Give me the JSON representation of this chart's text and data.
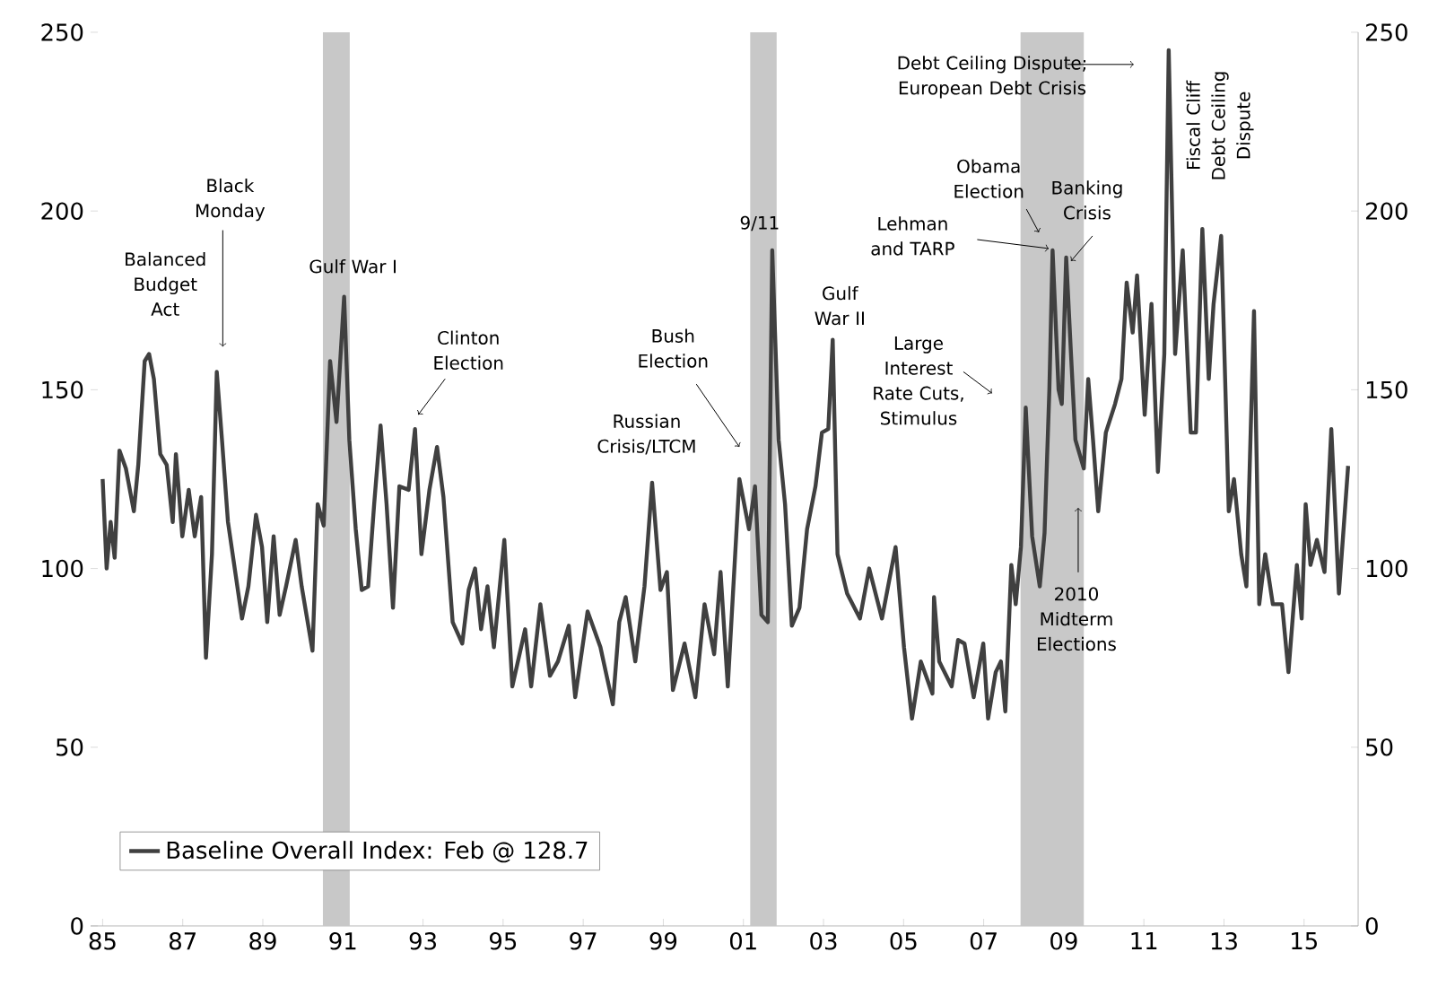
{
  "chart_data": {
    "type": "line",
    "x": [
      1985.0,
      1985.1,
      1985.2,
      1985.3,
      1985.42,
      1985.58,
      1985.78,
      1985.89,
      1986.05,
      1986.16,
      1986.28,
      1986.44,
      1986.6,
      1986.75,
      1986.83,
      1986.99,
      1987.15,
      1987.3,
      1987.46,
      1987.58,
      1987.73,
      1987.85,
      1987.98,
      1988.13,
      1988.48,
      1988.64,
      1988.83,
      1988.98,
      1989.11,
      1989.27,
      1989.42,
      1989.58,
      1989.82,
      1989.97,
      1990.24,
      1990.37,
      1990.52,
      1990.68,
      1990.84,
      1991.03,
      1991.16,
      1991.32,
      1991.47,
      1991.63,
      1991.78,
      1991.94,
      1992.09,
      1992.25,
      1992.41,
      1992.64,
      1992.8,
      1992.96,
      1993.16,
      1993.35,
      1993.51,
      1993.74,
      1993.98,
      1994.14,
      1994.3,
      1994.45,
      1994.61,
      1994.77,
      1995.03,
      1995.23,
      1995.55,
      1995.7,
      1995.93,
      1996.17,
      1996.37,
      1996.64,
      1996.8,
      1997.11,
      1997.43,
      1997.74,
      1997.9,
      1998.06,
      1998.3,
      1998.53,
      1998.72,
      1998.93,
      1999.09,
      1999.24,
      1999.53,
      1999.8,
      2000.03,
      2000.27,
      2000.43,
      2000.61,
      2000.9,
      2001.14,
      2001.29,
      2001.45,
      2001.61,
      2001.72,
      2001.88,
      2002.04,
      2002.21,
      2002.4,
      2002.59,
      2002.8,
      2002.96,
      2003.12,
      2003.23,
      2003.35,
      2003.59,
      2003.91,
      2004.14,
      2004.46,
      2004.8,
      2005.01,
      2005.21,
      2005.43,
      2005.72,
      2005.76,
      2005.89,
      2006.2,
      2006.36,
      2006.52,
      2006.75,
      2006.99,
      2007.11,
      2007.3,
      2007.43,
      2007.54,
      2007.69,
      2007.8,
      2007.93,
      2008.05,
      2008.21,
      2008.4,
      2008.52,
      2008.64,
      2008.72,
      2008.87,
      2008.95,
      2009.06,
      2009.18,
      2009.29,
      2009.5,
      2009.61,
      2009.73,
      2009.86,
      2010.05,
      2010.28,
      2010.44,
      2010.57,
      2010.72,
      2010.83,
      2011.02,
      2011.19,
      2011.35,
      2011.51,
      2011.62,
      2011.78,
      2011.97,
      2012.17,
      2012.3,
      2012.46,
      2012.62,
      2012.74,
      2012.93,
      2013.12,
      2013.25,
      2013.43,
      2013.56,
      2013.75,
      2013.88,
      2014.03,
      2014.22,
      2014.45,
      2014.61,
      2014.82,
      2014.94,
      2015.04,
      2015.16,
      2015.32,
      2015.51,
      2015.68,
      2015.87,
      2016.1
    ],
    "series": [
      {
        "name": "Baseline Overall Index: Feb @ 128.7",
        "color": "#404040",
        "values": [
          125,
          100,
          113,
          103,
          133,
          128,
          116,
          129,
          158,
          160,
          153,
          132,
          129,
          113,
          132,
          109,
          122,
          109,
          120,
          75,
          104,
          155,
          136,
          113,
          86,
          95,
          115,
          106,
          85,
          109,
          87,
          95,
          108,
          95,
          77,
          118,
          112,
          158,
          141,
          176,
          136,
          111,
          94,
          95,
          118,
          140,
          118,
          89,
          123,
          122,
          139,
          104,
          122,
          134,
          120,
          85,
          79,
          94,
          100,
          83,
          95,
          78,
          108,
          67,
          83,
          67,
          90,
          70,
          74,
          84,
          64,
          88,
          78,
          62,
          85,
          92,
          74,
          95,
          124,
          94,
          99,
          66,
          79,
          64,
          90,
          76,
          99,
          67,
          125,
          111,
          123,
          87,
          85,
          189,
          136,
          118,
          84,
          89,
          111,
          123,
          138,
          139,
          164,
          104,
          93,
          86,
          100,
          86,
          106,
          78,
          58,
          74,
          65,
          92,
          74,
          67,
          80,
          79,
          64,
          79,
          58,
          71,
          74,
          60,
          101,
          90,
          106,
          145,
          109,
          95,
          110,
          150,
          189,
          150,
          146,
          187,
          160,
          136,
          128,
          153,
          136,
          116,
          138,
          146,
          153,
          180,
          166,
          182,
          143,
          174,
          127,
          160,
          245,
          160,
          189,
          138,
          138,
          195,
          153,
          174,
          193,
          116,
          125,
          104,
          95,
          172,
          90,
          104,
          90,
          90,
          71,
          101,
          86,
          118,
          101,
          108,
          99,
          139,
          93,
          128.7
        ]
      }
    ],
    "xlim": [
      1984.7,
      2016.35
    ],
    "xticks": [
      {
        "value": 1985,
        "label": "85"
      },
      {
        "value": 1987,
        "label": "87"
      },
      {
        "value": 1989,
        "label": "89"
      },
      {
        "value": 1991,
        "label": "91"
      },
      {
        "value": 1993,
        "label": "93"
      },
      {
        "value": 1995,
        "label": "95"
      },
      {
        "value": 1997,
        "label": "97"
      },
      {
        "value": 1999,
        "label": "99"
      },
      {
        "value": 2001,
        "label": "01"
      },
      {
        "value": 2003,
        "label": "03"
      },
      {
        "value": 2005,
        "label": "05"
      },
      {
        "value": 2007,
        "label": "07"
      },
      {
        "value": 2009,
        "label": "09"
      },
      {
        "value": 2011,
        "label": "11"
      },
      {
        "value": 2013,
        "label": "13"
      },
      {
        "value": 2015,
        "label": "15"
      }
    ],
    "ylim": [
      0,
      250
    ],
    "yticks": [
      0,
      50,
      100,
      150,
      200,
      250
    ],
    "y2lim": [
      0,
      250
    ],
    "y2ticks": [
      0,
      50,
      100,
      150,
      200,
      250
    ],
    "bands": [
      {
        "axis": "x",
        "from": 1990.5,
        "to": 1991.17,
        "color": "#c8c8c8"
      },
      {
        "axis": "x",
        "from": 2001.17,
        "to": 2001.83,
        "color": "#c8c8c8"
      },
      {
        "axis": "x",
        "from": 2007.92,
        "to": 2009.5,
        "color": "#c8c8c8"
      }
    ],
    "legend": "bottom left",
    "annotations": [
      {
        "text": "Balanced Budget Act",
        "x": 1986.16,
        "y": 160
      },
      {
        "text": "Black Monday",
        "x": 1988.0,
        "y": 162
      },
      {
        "text": "Gulf War I",
        "x": 1991.03,
        "y": 176
      },
      {
        "text": "Clinton Election",
        "x": 1992.88,
        "y": 143
      },
      {
        "text": "Russian Crisis/LTCM",
        "x": 1998.72,
        "y": 124
      },
      {
        "text": "Bush Election",
        "x": 2000.9,
        "y": 134
      },
      {
        "text": "9/11",
        "x": 2001.72,
        "y": 189
      },
      {
        "text": "Gulf War II",
        "x": 2003.23,
        "y": 164
      },
      {
        "text": "Large Interest Rate Cuts, Stimulus",
        "x": 2007.21,
        "y": 149
      },
      {
        "text": "Lehman and TARP",
        "x": 2008.72,
        "y": 189
      },
      {
        "text": "Obama Election",
        "x": 2008.38,
        "y": 194
      },
      {
        "text": "Banking Crisis",
        "x": 2009.18,
        "y": 186
      },
      {
        "text": "2010 Midterm Elections",
        "x": 2009.36,
        "y": 117
      },
      {
        "text": "Debt Ceiling Dispute; European Debt Crisis",
        "x": 2010.75,
        "y": 241
      },
      "Fiscal Cliff Debt Ceiling Dispute"
    ]
  }
}
